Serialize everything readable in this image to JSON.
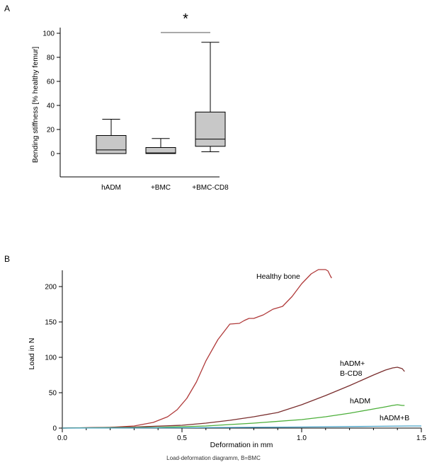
{
  "chart_data": [
    {
      "type": "box",
      "panel_label": "A",
      "ylabel": "Bending stiffness [% healthy femur]",
      "ylim": [
        0,
        100
      ],
      "yticks": [
        0,
        20,
        40,
        60,
        80,
        100
      ],
      "categories": [
        "hADM",
        "+BMC",
        "+BMC-CD8"
      ],
      "boxes": [
        {
          "whisker_low": 0,
          "q1": 0,
          "median": 3,
          "q3": 15,
          "whisker_high": 28.5
        },
        {
          "whisker_low": 0,
          "q1": 0,
          "median": 0.5,
          "q3": 5,
          "whisker_high": 12.5
        },
        {
          "whisker_low": 1.5,
          "q1": 6,
          "median": 12,
          "q3": 34.5,
          "whisker_high": 92.5
        }
      ],
      "significance": {
        "from": "+BMC",
        "to": "+BMC-CD8",
        "symbol": "*"
      },
      "box_color": "#c8c8c8"
    },
    {
      "type": "line",
      "panel_label": "B",
      "xlabel": "Deformation in mm",
      "ylabel": "Load in N",
      "xlim": [
        0,
        1.5
      ],
      "ylim": [
        0,
        225
      ],
      "xticks": [
        "0.0",
        "0.5",
        "1.0",
        "1.5"
      ],
      "yticks": [
        0,
        50,
        100,
        150,
        200
      ],
      "series": [
        {
          "label": "Healthy bone",
          "color": "#b03a3a",
          "x": [
            0,
            0.2,
            0.3,
            0.38,
            0.44,
            0.48,
            0.52,
            0.56,
            0.6,
            0.65,
            0.7,
            0.74,
            0.76,
            0.78,
            0.8,
            0.84,
            0.88,
            0.92,
            0.96,
            1.0,
            1.04,
            1.07,
            1.1,
            1.11,
            1.12,
            1.125
          ],
          "y": [
            0,
            1,
            3,
            8,
            16,
            26,
            42,
            65,
            95,
            125,
            147,
            148,
            152,
            155,
            155,
            160,
            168,
            172,
            186,
            204,
            218,
            224,
            224,
            222,
            215,
            212
          ]
        },
        {
          "label": "hADM+\nB-CD8",
          "color": "#7a2e2e",
          "x": [
            0,
            0.3,
            0.5,
            0.6,
            0.7,
            0.8,
            0.9,
            1.0,
            1.1,
            1.2,
            1.3,
            1.35,
            1.38,
            1.4,
            1.42,
            1.43
          ],
          "y": [
            0,
            1.5,
            4,
            7,
            11,
            16,
            22,
            33,
            46,
            60,
            75,
            82,
            85,
            86,
            84,
            80
          ]
        },
        {
          "label": "hADM",
          "color": "#4caf3a",
          "x": [
            0,
            0.4,
            0.6,
            0.8,
            1.0,
            1.1,
            1.2,
            1.3,
            1.35,
            1.38,
            1.4,
            1.42,
            1.43
          ],
          "y": [
            0,
            1,
            3,
            7,
            12,
            16,
            21,
            27,
            30,
            32,
            33,
            32,
            32
          ]
        },
        {
          "label": "hADM+B",
          "color": "#4aa3c8",
          "x": [
            0,
            0.5,
            1.0,
            1.3,
            1.45,
            1.5
          ],
          "y": [
            0,
            0.5,
            1.5,
            2.5,
            3,
            3
          ]
        }
      ],
      "caption": "Load-deformation diagramm, B=BMC"
    }
  ]
}
